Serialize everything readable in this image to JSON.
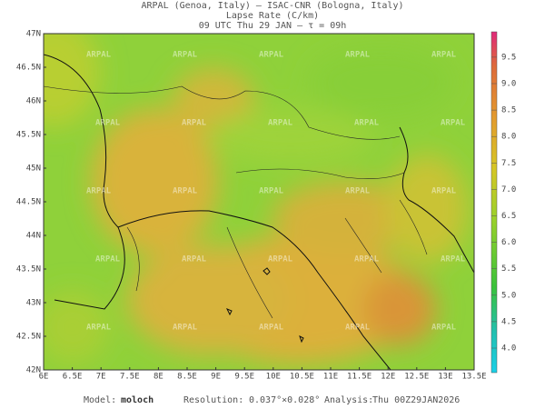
{
  "header": {
    "line1": "ARPAL (Genoa, Italy)  –  ISAC-CNR (Bologna, Italy)",
    "line2": "Lapse Rate (C/km)",
    "line3": "09 UTC Thu 29 JAN  –  τ = 09h"
  },
  "map": {
    "lat_labels": [
      "47N",
      "46.5N",
      "46N",
      "45.5N",
      "45N",
      "44.5N",
      "44N",
      "43.5N",
      "43N",
      "42.5N",
      "42N"
    ],
    "lon_labels": [
      "6E",
      "6.5E",
      "7E",
      "7.5E",
      "8E",
      "8.5E",
      "9E",
      "9.5E",
      "10E",
      "10.5E",
      "11E",
      "11.5E",
      "12E",
      "12.5E",
      "13E",
      "13.5E"
    ],
    "watermark": "ARPAL"
  },
  "colorbar": {
    "ticks": [
      "4.0",
      "4.5",
      "5.0",
      "5.5",
      "6.0",
      "6.5",
      "7.0",
      "7.5",
      "8.0",
      "8.5",
      "9.0",
      "9.5"
    ]
  },
  "footer": {
    "model_label": "Model:",
    "model": "moloch",
    "resolution_label": "Resolution:",
    "resolution": "0.037°×0.028°",
    "analysis_label": "Analysis:",
    "analysis": "Thu 00Z29JAN2026"
  }
}
